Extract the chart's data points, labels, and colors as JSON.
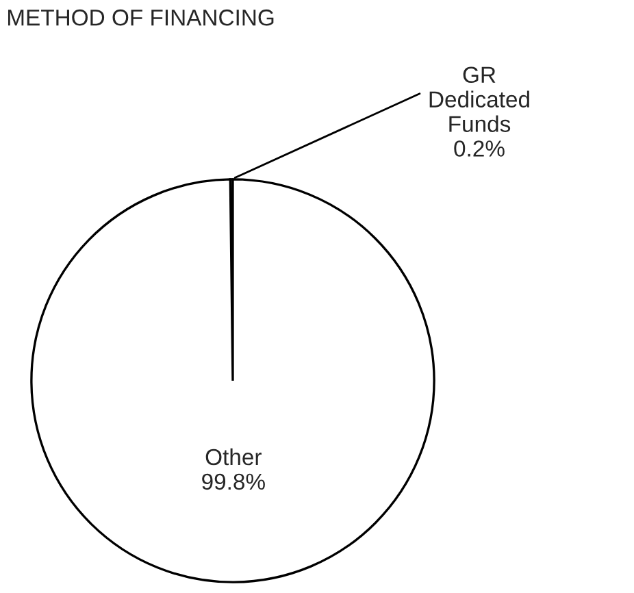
{
  "chart_data": {
    "type": "pie",
    "title": "METHOD OF FINANCING",
    "categories": [
      "GR Dedicated Funds",
      "Other"
    ],
    "values": [
      0.2,
      99.8
    ],
    "colors": [
      "#ffffff",
      "#ffffff"
    ],
    "value_labels": [
      "0.2%",
      "99.8%"
    ],
    "legend": false
  }
}
